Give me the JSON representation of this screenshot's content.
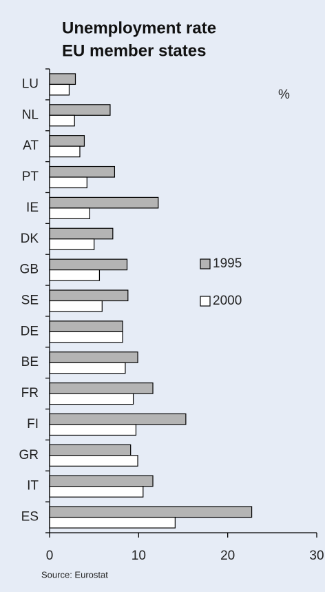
{
  "chart_data": {
    "type": "bar",
    "orientation": "horizontal",
    "title": "Unemployment rate",
    "subtitle": "EU member states",
    "unit_label": "%",
    "source": "Source: Eurostat",
    "categories": [
      "LU",
      "NL",
      "AT",
      "PT",
      "IE",
      "DK",
      "GB",
      "SE",
      "DE",
      "BE",
      "FR",
      "FI",
      "GR",
      "IT",
      "ES"
    ],
    "series": [
      {
        "name": "1995",
        "color": "#b4b4b4",
        "values": [
          2.9,
          6.8,
          3.9,
          7.3,
          12.2,
          7.1,
          8.7,
          8.8,
          8.2,
          9.9,
          11.6,
          15.3,
          9.1,
          11.6,
          22.7
        ]
      },
      {
        "name": "2000",
        "color": "#ffffff",
        "values": [
          2.2,
          2.8,
          3.4,
          4.2,
          4.5,
          5.0,
          5.6,
          5.9,
          8.2,
          8.5,
          9.4,
          9.7,
          9.9,
          10.5,
          14.1
        ]
      }
    ],
    "xlim": [
      0,
      30
    ],
    "xticks": [
      0,
      10,
      20,
      30
    ],
    "grid": false
  }
}
